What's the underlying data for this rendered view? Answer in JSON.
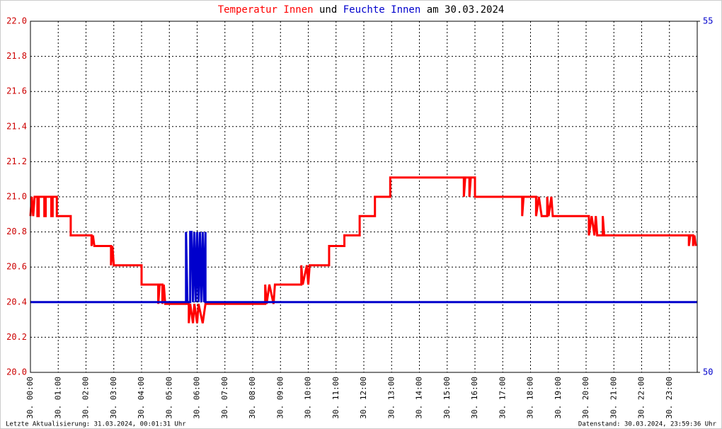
{
  "chart_data": {
    "type": "line",
    "title_connector": "und",
    "title_date": "am 30.03.2024",
    "footer_left": "Letzte Aktualisierung: 31.03.2024, 00:01:31 Uhr",
    "footer_right": "Datenstand: 30.03.2024, 23:59:36 Uhr",
    "xlim": [
      0,
      24
    ],
    "xticks": [
      {
        "value": 0,
        "label": "30. 00:00"
      },
      {
        "value": 1,
        "label": "30. 01:00"
      },
      {
        "value": 2,
        "label": "30. 02:00"
      },
      {
        "value": 3,
        "label": "30. 03:00"
      },
      {
        "value": 4,
        "label": "30. 04:00"
      },
      {
        "value": 5,
        "label": "30. 05:00"
      },
      {
        "value": 6,
        "label": "30. 06:00"
      },
      {
        "value": 7,
        "label": "30. 07:00"
      },
      {
        "value": 8,
        "label": "30. 08:00"
      },
      {
        "value": 9,
        "label": "30. 09:00"
      },
      {
        "value": 10,
        "label": "30. 10:00"
      },
      {
        "value": 11,
        "label": "30. 11:00"
      },
      {
        "value": 12,
        "label": "30. 12:00"
      },
      {
        "value": 13,
        "label": "30. 13:00"
      },
      {
        "value": 14,
        "label": "30. 14:00"
      },
      {
        "value": 15,
        "label": "30. 15:00"
      },
      {
        "value": 16,
        "label": "30. 16:00"
      },
      {
        "value": 17,
        "label": "30. 17:00"
      },
      {
        "value": 18,
        "label": "30. 18:00"
      },
      {
        "value": 19,
        "label": "30. 19:00"
      },
      {
        "value": 20,
        "label": "30. 20:00"
      },
      {
        "value": 21,
        "label": "30. 21:00"
      },
      {
        "value": 22,
        "label": "30. 22:00"
      },
      {
        "value": 23,
        "label": "30. 23:00"
      }
    ],
    "ylim": [
      20,
      22
    ],
    "yticks": [
      {
        "value": 20,
        "label": "20.0"
      },
      20.2,
      20.4,
      20.6,
      20.8,
      {
        "value": 21,
        "label": "21.0"
      },
      21.2,
      21.4,
      21.6,
      21.8,
      {
        "value": 22,
        "label": "22.0"
      }
    ],
    "y2lim": [
      50,
      55
    ],
    "y2ticks": [
      50,
      55
    ],
    "grid": true,
    "series": [
      {
        "name": "Temperatur Innen",
        "color": "#ff0000",
        "axis": "y",
        "x": [
          0,
          0.05,
          0.1,
          0.15,
          0.25,
          0.25,
          0.3,
          0.3,
          0.5,
          0.5,
          0.55,
          0.55,
          0.75,
          0.75,
          0.8,
          0.8,
          0.95,
          0.95,
          1.45,
          1.45,
          2.2,
          2.2,
          2.25,
          2.3,
          2.9,
          2.9,
          2.95,
          3.0,
          4.0,
          4.0,
          4.6,
          4.6,
          4.65,
          4.75,
          4.75,
          4.8,
          4.85,
          5.7,
          5.7,
          5.75,
          5.85,
          5.9,
          6.0,
          6.05,
          6.2,
          6.3,
          8.45,
          8.45,
          8.5,
          8.6,
          8.75,
          8.8,
          9.75,
          9.75,
          9.8,
          9.95,
          10.0,
          10.05,
          10.75,
          10.75,
          11.3,
          11.3,
          11.85,
          11.85,
          12.4,
          12.4,
          12.95,
          12.95,
          15.6,
          15.6,
          15.65,
          15.8,
          15.8,
          15.85,
          16.0,
          16.0,
          17.7,
          17.7,
          17.75,
          18.2,
          18.2,
          18.3,
          18.4,
          18.6,
          18.6,
          18.65,
          18.75,
          18.8,
          20.1,
          20.1,
          20.2,
          20.3,
          20.35,
          20.4,
          20.6,
          20.6,
          20.65,
          23.7,
          23.7,
          23.75,
          23.85,
          23.85,
          23.9,
          23.95
        ],
        "values": [
          20.89,
          21.0,
          20.89,
          21.0,
          21.0,
          20.89,
          20.89,
          21.0,
          21.0,
          20.89,
          20.89,
          21.0,
          21.0,
          20.89,
          20.89,
          21.0,
          21.0,
          20.89,
          20.89,
          20.78,
          20.78,
          20.72,
          20.78,
          20.72,
          20.72,
          20.61,
          20.72,
          20.61,
          20.61,
          20.5,
          20.5,
          20.39,
          20.5,
          20.5,
          20.39,
          20.5,
          20.39,
          20.39,
          20.28,
          20.39,
          20.28,
          20.39,
          20.28,
          20.39,
          20.28,
          20.39,
          20.39,
          20.5,
          20.39,
          20.5,
          20.39,
          20.5,
          20.5,
          20.61,
          20.5,
          20.61,
          20.5,
          20.61,
          20.61,
          20.72,
          20.72,
          20.78,
          20.78,
          20.89,
          20.89,
          21.0,
          21.0,
          21.11,
          21.11,
          21.0,
          21.11,
          21.11,
          21.0,
          21.11,
          21.11,
          21.0,
          21.0,
          20.89,
          21.0,
          21.0,
          20.89,
          21.0,
          20.89,
          20.89,
          21.0,
          20.89,
          21.0,
          20.89,
          20.89,
          20.78,
          20.89,
          20.78,
          20.89,
          20.78,
          20.78,
          20.89,
          20.78,
          20.78,
          20.72,
          20.78,
          20.78,
          20.72,
          20.78,
          20.72
        ]
      },
      {
        "name": "Feuchte Innen",
        "color": "#0000cc",
        "axis": "y2",
        "x": [
          0,
          5.6,
          5.6,
          5.65,
          5.75,
          5.75,
          5.8,
          5.85,
          5.9,
          5.95,
          6.0,
          6.05,
          6.1,
          6.15,
          6.2,
          6.25,
          6.3,
          6.3,
          24
        ],
        "values": [
          51,
          51,
          52,
          51,
          51,
          52,
          52,
          51,
          52,
          51,
          52,
          51,
          52,
          51,
          52,
          51,
          52,
          51,
          51
        ]
      }
    ]
  }
}
